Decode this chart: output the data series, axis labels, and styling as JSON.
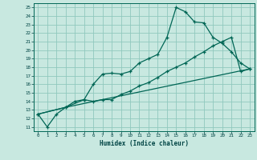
{
  "title": "",
  "xlabel": "Humidex (Indice chaleur)",
  "xlim": [
    -0.5,
    23.5
  ],
  "ylim": [
    10.5,
    25.5
  ],
  "xticks": [
    0,
    1,
    2,
    3,
    4,
    5,
    6,
    7,
    8,
    9,
    10,
    11,
    12,
    13,
    14,
    15,
    16,
    17,
    18,
    19,
    20,
    21,
    22,
    23
  ],
  "yticks": [
    11,
    12,
    13,
    14,
    15,
    16,
    17,
    18,
    19,
    20,
    21,
    22,
    23,
    24,
    25
  ],
  "bg_color": "#c8e8e0",
  "line_color": "#006655",
  "grid_color": "#90c8be",
  "line1_x": [
    0,
    1,
    2,
    3,
    4,
    5,
    6,
    7,
    8,
    9,
    10,
    11,
    12,
    13,
    14,
    15,
    16,
    17,
    18,
    19,
    20,
    21,
    22,
    23
  ],
  "line1_y": [
    12.5,
    11.0,
    12.5,
    13.3,
    14.0,
    14.2,
    16.0,
    17.2,
    17.3,
    17.2,
    17.5,
    18.5,
    19.0,
    19.5,
    21.5,
    25.0,
    24.5,
    23.3,
    23.2,
    21.5,
    20.8,
    19.8,
    18.5,
    17.8
  ],
  "line2_x": [
    0,
    3,
    5,
    6,
    7,
    8,
    9,
    10,
    11,
    12,
    13,
    14,
    15,
    16,
    17,
    18,
    19,
    20,
    21,
    22,
    23
  ],
  "line2_y": [
    12.5,
    13.3,
    14.2,
    14.0,
    14.2,
    14.2,
    14.8,
    15.2,
    15.8,
    16.2,
    16.8,
    17.5,
    18.0,
    18.5,
    19.2,
    19.8,
    20.5,
    21.0,
    21.5,
    17.5,
    17.8
  ],
  "line3_x": [
    0,
    3,
    23
  ],
  "line3_y": [
    12.5,
    13.3,
    17.8
  ]
}
